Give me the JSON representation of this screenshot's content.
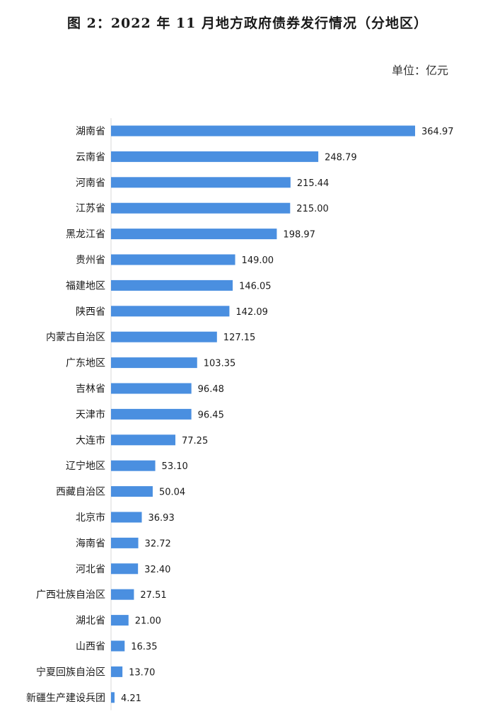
{
  "header": {
    "title": "图 2：2022 年 11 月地方政府债券发行情况（分地区）",
    "unit": "单位：亿元"
  },
  "colors": {
    "bar": "#4A8FE0"
  },
  "chart_data": {
    "type": "bar",
    "orientation": "horizontal",
    "title": "图 2：2022 年 11 月地方政府债券发行情况（分地区）",
    "unit": "单位：亿元",
    "categories": [
      "湖南省",
      "云南省",
      "河南省",
      "江苏省",
      "黑龙江省",
      "贵州省",
      "福建地区",
      "陕西省",
      "内蒙古自治区",
      "广东地区",
      "吉林省",
      "天津市",
      "大连市",
      "辽宁地区",
      "西藏自治区",
      "北京市",
      "海南省",
      "河北省",
      "广西壮族自治区",
      "湖北省",
      "山西省",
      "宁夏回族自治区",
      "新疆生产建设兵团"
    ],
    "values": [
      364.97,
      248.79,
      215.44,
      215.0,
      198.97,
      149.0,
      146.05,
      142.09,
      127.15,
      103.35,
      96.48,
      96.45,
      77.25,
      53.1,
      50.04,
      36.93,
      32.72,
      32.4,
      27.51,
      21.0,
      16.35,
      13.7,
      4.21
    ],
    "value_labels": [
      "364.97",
      "248.79",
      "215.44",
      "215.00",
      "198.97",
      "149.00",
      "146.05",
      "142.09",
      "127.15",
      "103.35",
      "96.48",
      "96.45",
      "77.25",
      "53.10",
      "50.04",
      "36.93",
      "32.72",
      "32.40",
      "27.51",
      "21.00",
      "16.35",
      "13.70",
      "4.21"
    ],
    "xlim": [
      0,
      364.97
    ],
    "grid": false,
    "legend": "none"
  }
}
